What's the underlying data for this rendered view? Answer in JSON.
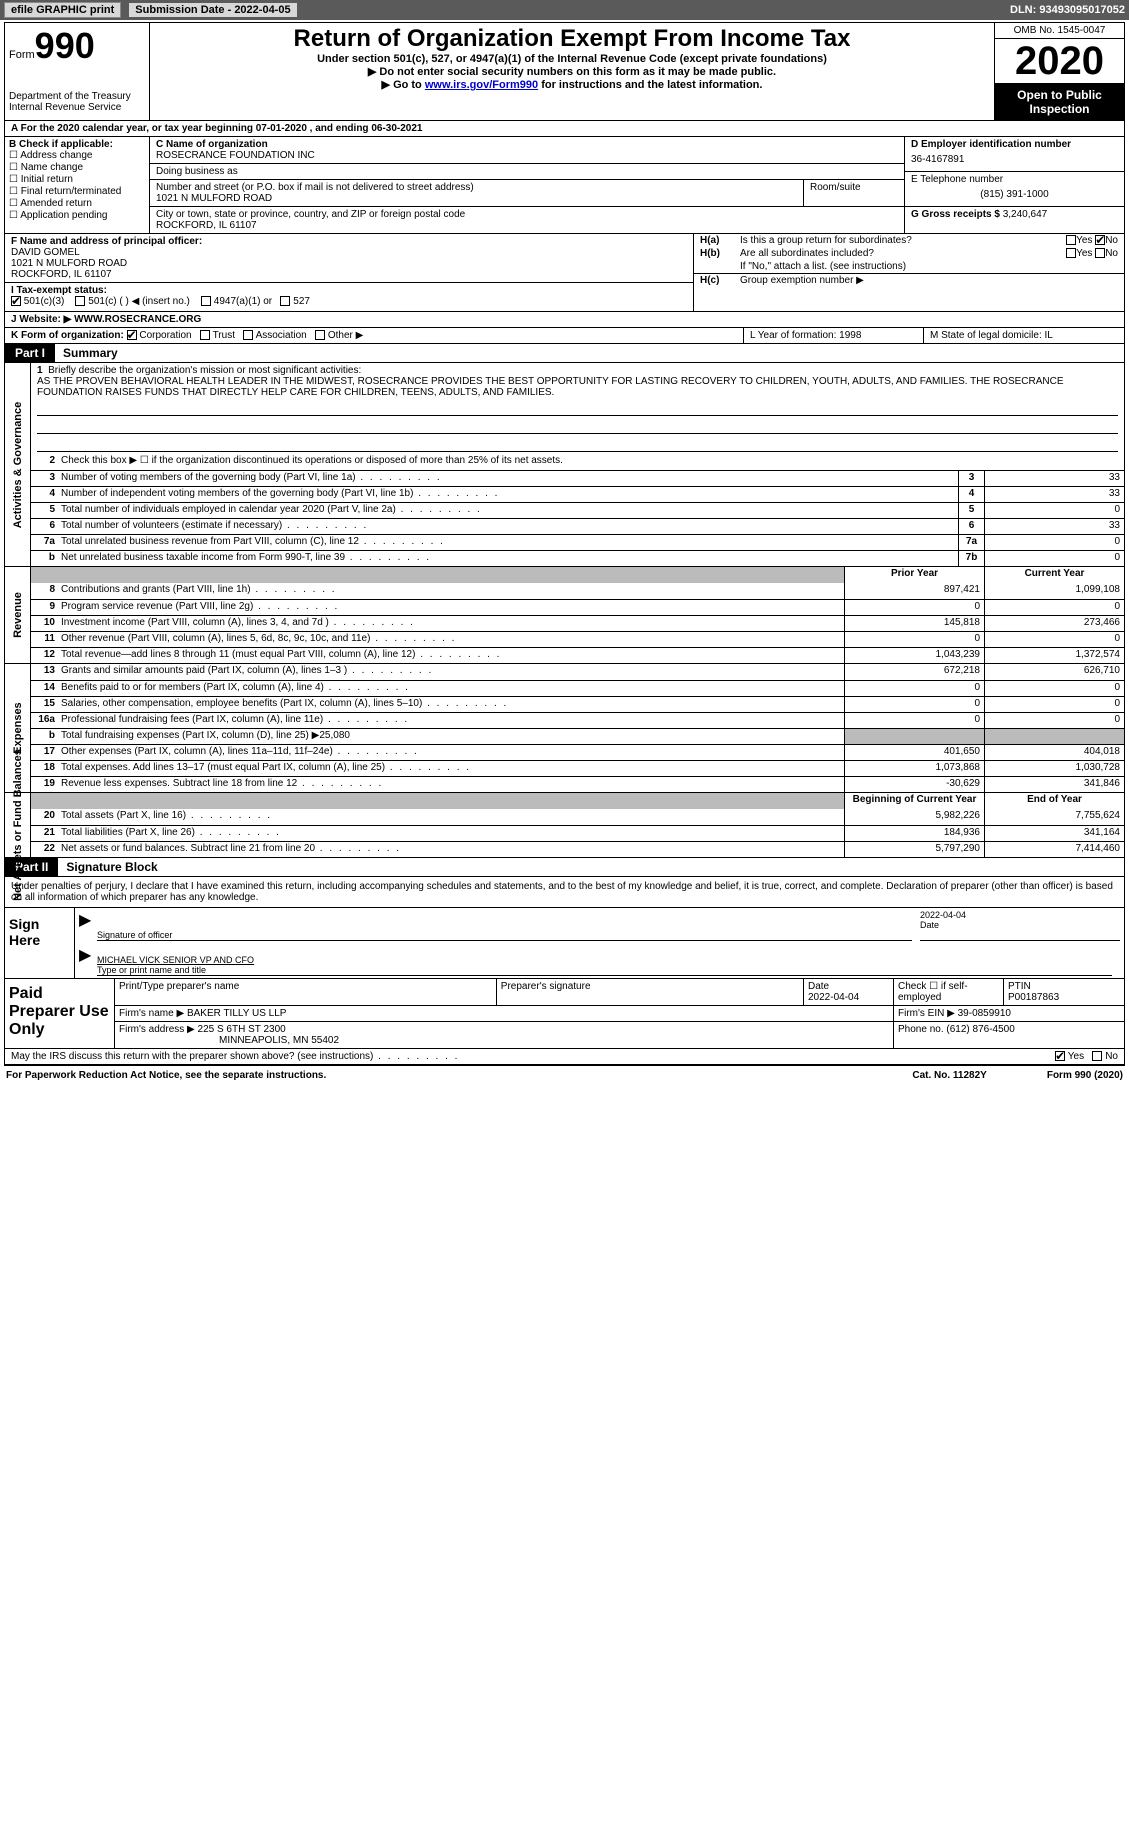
{
  "topbar": {
    "efile": "efile GRAPHIC print",
    "subdate_label": "Submission Date - 2022-04-05",
    "dln": "DLN: 93493095017052"
  },
  "header": {
    "form_label": "Form",
    "form_num": "990",
    "dept": "Department of the Treasury",
    "irs": "Internal Revenue Service",
    "title": "Return of Organization Exempt From Income Tax",
    "sub1": "Under section 501(c), 527, or 4947(a)(1) of the Internal Revenue Code (except private foundations)",
    "sub2": "▶ Do not enter social security numbers on this form as it may be made public.",
    "sub3_pre": "▶ Go to ",
    "sub3_link": "www.irs.gov/Form990",
    "sub3_post": " for instructions and the latest information.",
    "omb": "OMB No. 1545-0047",
    "year": "2020",
    "openpub": "Open to Public Inspection"
  },
  "rowA": "A For the 2020 calendar year, or tax year beginning 07-01-2020   , and ending 06-30-2021",
  "colB": {
    "label": "B Check if applicable:",
    "opts": [
      "Address change",
      "Name change",
      "Initial return",
      "Final return/terminated",
      "Amended return",
      "Application pending"
    ]
  },
  "colC": {
    "name_label": "C Name of organization",
    "name": "ROSECRANCE FOUNDATION INC",
    "dba_label": "Doing business as",
    "dba": "",
    "street_label": "Number and street (or P.O. box if mail is not delivered to street address)",
    "street": "1021 N MULFORD ROAD",
    "room_label": "Room/suite",
    "city_label": "City or town, state or province, country, and ZIP or foreign postal code",
    "city": "ROCKFORD, IL  61107"
  },
  "colD": {
    "ein_label": "D Employer identification number",
    "ein": "36-4167891",
    "tel_label": "E Telephone number",
    "tel": "(815) 391-1000",
    "gross_label": "G Gross receipts $",
    "gross": "3,240,647"
  },
  "colF": {
    "label": "F Name and address of principal officer:",
    "name": "DAVID GOMEL",
    "addr1": "1021 N MULFORD ROAD",
    "addr2": "ROCKFORD, IL  61107"
  },
  "colH": {
    "ha": "Is this a group return for subordinates?",
    "hb": "Are all subordinates included?",
    "hb2": "If \"No,\" attach a list. (see instructions)",
    "hc": "Group exemption number ▶"
  },
  "rowI": {
    "label": "I   Tax-exempt status:",
    "opts": [
      "501(c)(3)",
      "501(c) (  ) ◀ (insert no.)",
      "4947(a)(1) or",
      "527"
    ]
  },
  "rowJ": {
    "label": "J   Website: ▶",
    "val": "WWW.ROSECRANCE.ORG"
  },
  "rowK": {
    "label": "K Form of organization:",
    "opts": [
      "Corporation",
      "Trust",
      "Association",
      "Other ▶"
    ],
    "L": "L Year of formation: 1998",
    "M": "M State of legal domicile: IL"
  },
  "part1": {
    "tag": "Part I",
    "title": "Summary"
  },
  "mission": {
    "num": "1",
    "label": "Briefly describe the organization's mission or most significant activities:",
    "text": "AS THE PROVEN BEHAVIORAL HEALTH LEADER IN THE MIDWEST, ROSECRANCE PROVIDES THE BEST OPPORTUNITY FOR LASTING RECOVERY TO CHILDREN, YOUTH, ADULTS, AND FAMILIES. THE ROSECRANCE FOUNDATION RAISES FUNDS THAT DIRECTLY HELP CARE FOR CHILDREN, TEENS, ADULTS, AND FAMILIES."
  },
  "vtabs": {
    "gov": "Activities & Governance",
    "rev": "Revenue",
    "exp": "Expenses",
    "net": "Net Assets or Fund Balances"
  },
  "gov_rows": [
    {
      "n": "2",
      "t": "Check this box ▶ ☐  if the organization discontinued its operations or disposed of more than 25% of its net assets."
    },
    {
      "n": "3",
      "t": "Number of voting members of the governing body (Part VI, line 1a)",
      "b": "3",
      "v": "33"
    },
    {
      "n": "4",
      "t": "Number of independent voting members of the governing body (Part VI, line 1b)",
      "b": "4",
      "v": "33"
    },
    {
      "n": "5",
      "t": "Total number of individuals employed in calendar year 2020 (Part V, line 2a)",
      "b": "5",
      "v": "0"
    },
    {
      "n": "6",
      "t": "Total number of volunteers (estimate if necessary)",
      "b": "6",
      "v": "33"
    },
    {
      "n": "7a",
      "t": "Total unrelated business revenue from Part VIII, column (C), line 12",
      "b": "7a",
      "v": "0"
    },
    {
      "n": "b",
      "t": "Net unrelated business taxable income from Form 990-T, line 39",
      "b": "7b",
      "v": "0"
    }
  ],
  "rev_hdr": {
    "prior": "Prior Year",
    "curr": "Current Year"
  },
  "rev_rows": [
    {
      "n": "8",
      "t": "Contributions and grants (Part VIII, line 1h)",
      "p": "897,421",
      "c": "1,099,108"
    },
    {
      "n": "9",
      "t": "Program service revenue (Part VIII, line 2g)",
      "p": "0",
      "c": "0"
    },
    {
      "n": "10",
      "t": "Investment income (Part VIII, column (A), lines 3, 4, and 7d )",
      "p": "145,818",
      "c": "273,466"
    },
    {
      "n": "11",
      "t": "Other revenue (Part VIII, column (A), lines 5, 6d, 8c, 9c, 10c, and 11e)",
      "p": "0",
      "c": "0"
    },
    {
      "n": "12",
      "t": "Total revenue—add lines 8 through 11 (must equal Part VIII, column (A), line 12)",
      "p": "1,043,239",
      "c": "1,372,574"
    }
  ],
  "exp_rows": [
    {
      "n": "13",
      "t": "Grants and similar amounts paid (Part IX, column (A), lines 1–3 )",
      "p": "672,218",
      "c": "626,710"
    },
    {
      "n": "14",
      "t": "Benefits paid to or for members (Part IX, column (A), line 4)",
      "p": "0",
      "c": "0"
    },
    {
      "n": "15",
      "t": "Salaries, other compensation, employee benefits (Part IX, column (A), lines 5–10)",
      "p": "0",
      "c": "0"
    },
    {
      "n": "16a",
      "t": "Professional fundraising fees (Part IX, column (A), line 11e)",
      "p": "0",
      "c": "0"
    },
    {
      "n": "b",
      "t": "Total fundraising expenses (Part IX, column (D), line 25) ▶25,080",
      "gray": true
    },
    {
      "n": "17",
      "t": "Other expenses (Part IX, column (A), lines 11a–11d, 11f–24e)",
      "p": "401,650",
      "c": "404,018"
    },
    {
      "n": "18",
      "t": "Total expenses. Add lines 13–17 (must equal Part IX, column (A), line 25)",
      "p": "1,073,868",
      "c": "1,030,728"
    },
    {
      "n": "19",
      "t": "Revenue less expenses. Subtract line 18 from line 12",
      "p": "-30,629",
      "c": "341,846"
    }
  ],
  "net_hdr": {
    "beg": "Beginning of Current Year",
    "end": "End of Year"
  },
  "net_rows": [
    {
      "n": "20",
      "t": "Total assets (Part X, line 16)",
      "p": "5,982,226",
      "c": "7,755,624"
    },
    {
      "n": "21",
      "t": "Total liabilities (Part X, line 26)",
      "p": "184,936",
      "c": "341,164"
    },
    {
      "n": "22",
      "t": "Net assets or fund balances. Subtract line 21 from line 20",
      "p": "5,797,290",
      "c": "7,414,460"
    }
  ],
  "part2": {
    "tag": "Part II",
    "title": "Signature Block",
    "decl": "Under penalties of perjury, I declare that I have examined this return, including accompanying schedules and statements, and to the best of my knowledge and belief, it is true, correct, and complete. Declaration of preparer (other than officer) is based on all information of which preparer has any knowledge."
  },
  "sign": {
    "label": "Sign Here",
    "sig_officer": "Signature of officer",
    "date_val": "2022-04-04",
    "date": "Date",
    "name": "MICHAEL VICK SENIOR VP AND CFO",
    "name_lbl": "Type or print name and title"
  },
  "paid": {
    "label": "Paid Preparer Use Only",
    "r1": {
      "c1": "Print/Type preparer's name",
      "c2": "Preparer's signature",
      "c3": "Date",
      "c3v": "2022-04-04",
      "c4": "Check ☐ if self-employed",
      "c5": "PTIN",
      "c5v": "P00187863"
    },
    "r2": {
      "c1": "Firm's name   ▶",
      "c1v": "BAKER TILLY US LLP",
      "c2": "Firm's EIN ▶",
      "c2v": "39-0859910"
    },
    "r3": {
      "c1": "Firm's address ▶",
      "c1v": "225 S 6TH ST 2300",
      "c1v2": "MINNEAPOLIS, MN  55402",
      "c2": "Phone no.",
      "c2v": "(612) 876-4500"
    }
  },
  "bottom": {
    "q": "May the IRS discuss this return with the preparer shown above? (see instructions)",
    "yes": "Yes",
    "no": "No"
  },
  "footer": {
    "left": "For Paperwork Reduction Act Notice, see the separate instructions.",
    "mid": "Cat. No. 11282Y",
    "right": "Form 990 (2020)"
  }
}
